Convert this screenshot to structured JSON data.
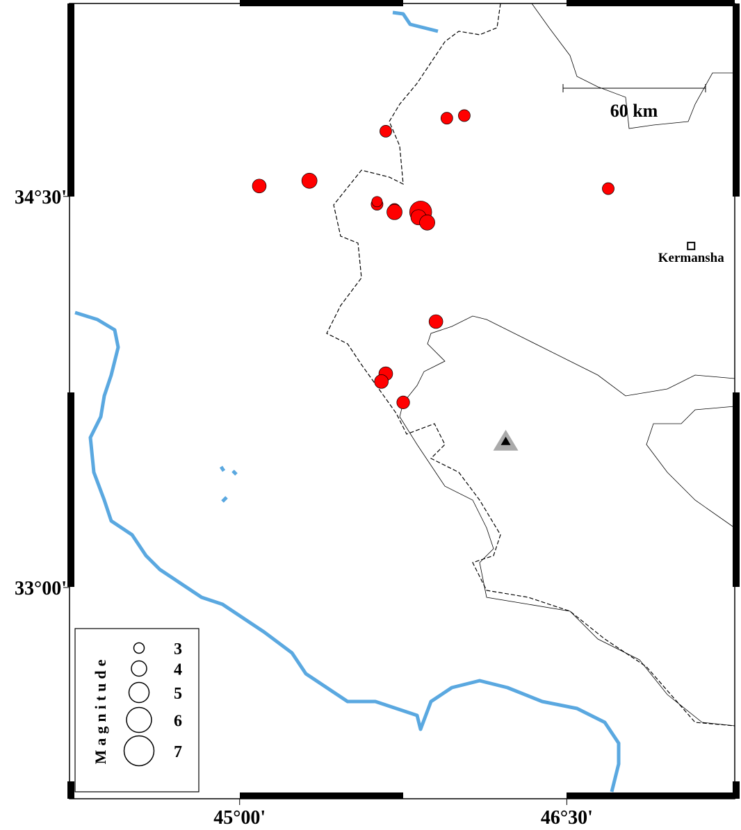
{
  "map": {
    "lon_range": [
      44.22,
      47.27
    ],
    "lat_range": [
      32.19,
      35.24
    ],
    "lon_ticks": [
      {
        "value": 45,
        "label": "45°00'"
      },
      {
        "value": 46.5,
        "label": "46°30'"
      }
    ],
    "lat_ticks": [
      {
        "value": 34.5,
        "label": "34°30'"
      },
      {
        "value": 33,
        "label": "33°00'"
      }
    ],
    "scale_bar": "60 km",
    "city": {
      "name": "Kermansha",
      "lon": 47.07,
      "lat": 34.31
    },
    "station": {
      "lon": 46.22,
      "lat": 33.56
    },
    "event_color": "#ff0000",
    "events": [
      {
        "lon": 45.09,
        "lat": 34.54,
        "magnitude": 3.7
      },
      {
        "lon": 45.32,
        "lat": 34.56,
        "magnitude": 4
      },
      {
        "lon": 45.67,
        "lat": 34.75,
        "magnitude": 3.3
      },
      {
        "lon": 45.95,
        "lat": 34.8,
        "magnitude": 3.3
      },
      {
        "lon": 46.03,
        "lat": 34.81,
        "magnitude": 3.3
      },
      {
        "lon": 46.69,
        "lat": 34.53,
        "magnitude": 3.3
      },
      {
        "lon": 45.63,
        "lat": 34.47,
        "magnitude": 3.3
      },
      {
        "lon": 45.63,
        "lat": 34.48,
        "magnitude": 3
      },
      {
        "lon": 45.71,
        "lat": 34.45,
        "magnitude": 3.3
      },
      {
        "lon": 45.71,
        "lat": 34.44,
        "magnitude": 4
      },
      {
        "lon": 45.83,
        "lat": 34.44,
        "magnitude": 5.4
      },
      {
        "lon": 45.82,
        "lat": 34.42,
        "magnitude": 4
      },
      {
        "lon": 45.86,
        "lat": 34.4,
        "magnitude": 4
      },
      {
        "lon": 45.9,
        "lat": 34.02,
        "magnitude": 3.7
      },
      {
        "lon": 45.67,
        "lat": 33.82,
        "magnitude": 3.7
      },
      {
        "lon": 45.65,
        "lat": 33.79,
        "magnitude": 3.7
      },
      {
        "lon": 45.75,
        "lat": 33.71,
        "magnitude": 3.5
      }
    ]
  },
  "legend": {
    "title": "Magnitude",
    "magnitudes": [
      3,
      4,
      5,
      6,
      7
    ]
  }
}
